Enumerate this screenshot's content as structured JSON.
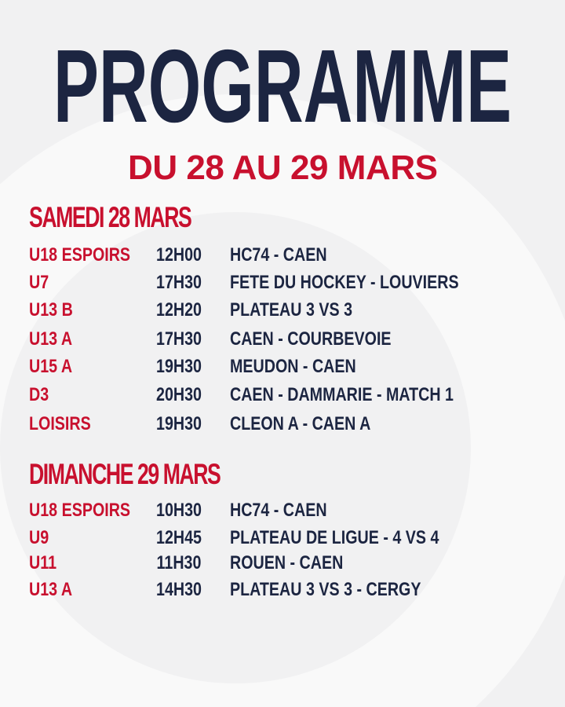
{
  "title": "PROGRAMME",
  "subtitle": "DU 28 AU 29 MARS",
  "colors": {
    "accent": "#c8102e",
    "text": "#1c2541",
    "background": "#f1f1f2"
  },
  "sections": [
    {
      "heading": "SAMEDI 28 MARS",
      "rows": [
        {
          "team": "U18 ESPOIRS",
          "time": "12H00",
          "match": "HC74 - CAEN"
        },
        {
          "team": "U7",
          "time": "17H30",
          "match": "FETE DU HOCKEY - LOUVIERS"
        },
        {
          "team": "U13 B",
          "time": "12H20",
          "match": "PLATEAU 3 VS 3"
        },
        {
          "team": "U13 A",
          "time": "17H30",
          "match": "CAEN - COURBEVOIE"
        },
        {
          "team": "U15 A",
          "time": "19H30",
          "match": "MEUDON - CAEN"
        },
        {
          "team": "D3",
          "time": "20H30",
          "match": "CAEN - DAMMARIE - MATCH 1"
        },
        {
          "team": "LOISIRS",
          "time": "19H30",
          "match": "CLEON A - CAEN A"
        }
      ]
    },
    {
      "heading": "DIMANCHE 29 MARS",
      "rows": [
        {
          "team": "U18 ESPOIRS",
          "time": "10H30",
          "match": "HC74 - CAEN"
        },
        {
          "team": "U9",
          "time": "12H45",
          "match": "PLATEAU DE LIGUE - 4 VS 4"
        },
        {
          "team": "U11",
          "time": "11H30",
          "match": "ROUEN - CAEN"
        },
        {
          "team": "U13 A",
          "time": "14H30",
          "match": "PLATEAU 3 VS 3 - CERGY"
        }
      ]
    }
  ]
}
